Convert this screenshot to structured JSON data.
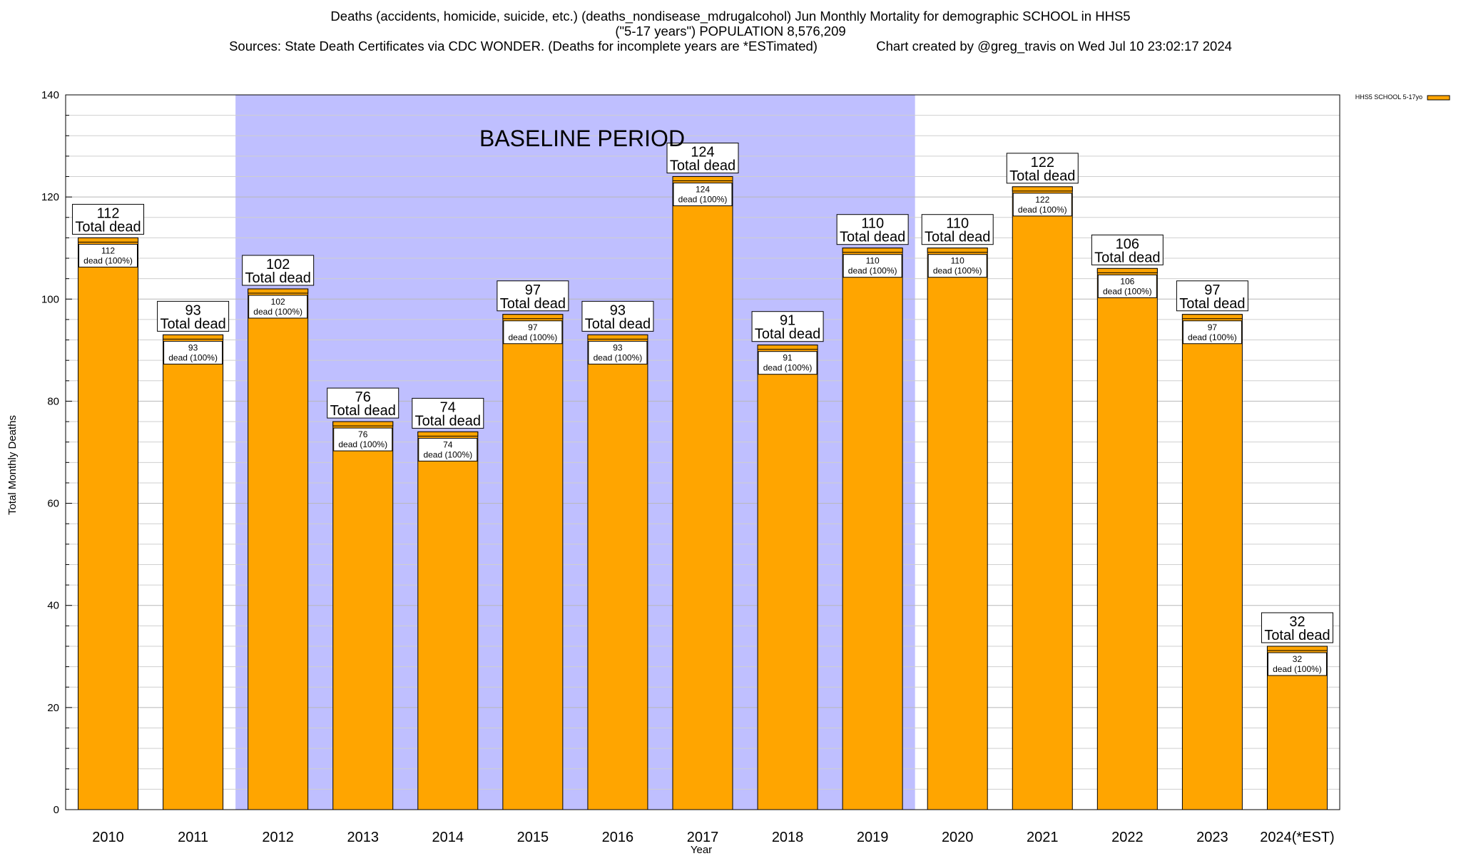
{
  "title": {
    "line1": "Deaths (accidents, homicide, suicide, etc.) (deaths_nondisease_mdrugalcohol) Jun Monthly Mortality for demographic SCHOOL in HHS5",
    "line2": "(\"5-17 years\") POPULATION 8,576,209",
    "line3": "Sources: State Death Certificates via CDC WONDER. (Deaths for incomplete years are *ESTimated)                Chart created by @greg_travis on Wed Jul 10 23:02:17 2024"
  },
  "chart_data": {
    "type": "bar",
    "categories": [
      "2010",
      "2011",
      "2012",
      "2013",
      "2014",
      "2015",
      "2016",
      "2017",
      "2018",
      "2019",
      "2020",
      "2021",
      "2022",
      "2023",
      "2024(*EST)"
    ],
    "series": [
      {
        "name": "HHS5 SCHOOL 5-17yo",
        "values": [
          112,
          93,
          102,
          76,
          74,
          97,
          93,
          124,
          91,
          110,
          110,
          122,
          106,
          97,
          32
        ],
        "color": "#FFA500"
      }
    ],
    "total_label_word": "Total dead",
    "inner_label_suffix": "dead (100%)",
    "xlabel": "Year",
    "ylabel": "Total Monthly Deaths",
    "ylim": [
      0,
      140
    ],
    "yticks": [
      0,
      20,
      40,
      60,
      80,
      100,
      120,
      140
    ],
    "minor_grid_step": 4,
    "grid": true,
    "legend_position": "top-right",
    "baseline": {
      "label": "BASELINE PERIOD",
      "start_category": "2012",
      "end_category": "2019",
      "color": "#BFBFFF"
    },
    "colors": {
      "bar_cap": "#FFA500",
      "bar_fill": "#FFA500"
    }
  }
}
